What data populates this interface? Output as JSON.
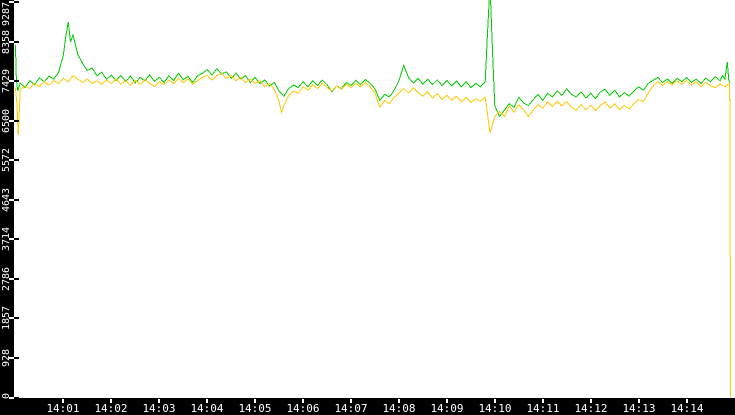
{
  "chart_data": {
    "type": "line",
    "title": "",
    "xlabel": "",
    "ylabel": "",
    "grid": false,
    "legend": "none",
    "plot_background": "#ffffff",
    "outer_background": "#000000",
    "axis_text_color": "#ffffff",
    "x_axis": {
      "labels": [
        "14:01",
        "14:02",
        "14:03",
        "14:04",
        "14:05",
        "14:06",
        "14:07",
        "14:08",
        "14:09",
        "14:10",
        "14:11",
        "14:12",
        "14:13",
        "14:14"
      ],
      "tick_minutes": [
        1,
        2,
        3,
        4,
        5,
        6,
        7,
        8,
        9,
        10,
        11,
        12,
        13,
        14
      ],
      "xlim_minutes": [
        -0.03,
        15.01
      ]
    },
    "y_axis": {
      "tick_values": [
        0,
        928,
        1857,
        2786,
        3714,
        4643,
        5572,
        6500,
        7429,
        8358,
        9287
      ],
      "ylim": [
        0,
        9339
      ]
    },
    "series": [
      {
        "name": "series-green",
        "color": "#00cc00",
        "points": [
          [
            0,
            8280
          ],
          [
            0.02,
            7450
          ],
          [
            0.05,
            7200
          ],
          [
            0.1,
            7390
          ],
          [
            0.2,
            7280
          ],
          [
            0.3,
            7440
          ],
          [
            0.4,
            7350
          ],
          [
            0.5,
            7510
          ],
          [
            0.6,
            7420
          ],
          [
            0.7,
            7550
          ],
          [
            0.8,
            7480
          ],
          [
            0.9,
            7640
          ],
          [
            1.0,
            8050
          ],
          [
            1.05,
            8480
          ],
          [
            1.1,
            8820
          ],
          [
            1.15,
            8350
          ],
          [
            1.2,
            8520
          ],
          [
            1.3,
            8060
          ],
          [
            1.4,
            7850
          ],
          [
            1.5,
            7680
          ],
          [
            1.6,
            7740
          ],
          [
            1.7,
            7560
          ],
          [
            1.8,
            7640
          ],
          [
            1.9,
            7480
          ],
          [
            2.0,
            7570
          ],
          [
            2.1,
            7450
          ],
          [
            2.2,
            7560
          ],
          [
            2.3,
            7430
          ],
          [
            2.4,
            7550
          ],
          [
            2.5,
            7390
          ],
          [
            2.6,
            7520
          ],
          [
            2.7,
            7440
          ],
          [
            2.8,
            7580
          ],
          [
            2.9,
            7430
          ],
          [
            3.0,
            7520
          ],
          [
            3.1,
            7400
          ],
          [
            3.2,
            7560
          ],
          [
            3.3,
            7450
          ],
          [
            3.4,
            7620
          ],
          [
            3.5,
            7470
          ],
          [
            3.6,
            7540
          ],
          [
            3.7,
            7400
          ],
          [
            3.8,
            7560
          ],
          [
            3.9,
            7620
          ],
          [
            4.0,
            7700
          ],
          [
            4.1,
            7580
          ],
          [
            4.2,
            7720
          ],
          [
            4.3,
            7600
          ],
          [
            4.4,
            7650
          ],
          [
            4.5,
            7500
          ],
          [
            4.6,
            7620
          ],
          [
            4.7,
            7480
          ],
          [
            4.8,
            7560
          ],
          [
            4.9,
            7400
          ],
          [
            5.0,
            7520
          ],
          [
            5.1,
            7380
          ],
          [
            5.2,
            7460
          ],
          [
            5.3,
            7320
          ],
          [
            5.4,
            7400
          ],
          [
            5.5,
            7200
          ],
          [
            5.6,
            7080
          ],
          [
            5.7,
            7260
          ],
          [
            5.8,
            7340
          ],
          [
            5.9,
            7280
          ],
          [
            6.0,
            7420
          ],
          [
            6.1,
            7300
          ],
          [
            6.2,
            7440
          ],
          [
            6.3,
            7330
          ],
          [
            6.4,
            7460
          ],
          [
            6.5,
            7350
          ],
          [
            6.6,
            7180
          ],
          [
            6.7,
            7320
          ],
          [
            6.8,
            7260
          ],
          [
            6.9,
            7400
          ],
          [
            7.0,
            7330
          ],
          [
            7.1,
            7450
          ],
          [
            7.2,
            7350
          ],
          [
            7.3,
            7470
          ],
          [
            7.4,
            7380
          ],
          [
            7.5,
            7250
          ],
          [
            7.6,
            6980
          ],
          [
            7.7,
            7120
          ],
          [
            7.8,
            7060
          ],
          [
            7.9,
            7220
          ],
          [
            8.0,
            7440
          ],
          [
            8.1,
            7800
          ],
          [
            8.2,
            7520
          ],
          [
            8.3,
            7390
          ],
          [
            8.4,
            7500
          ],
          [
            8.5,
            7360
          ],
          [
            8.6,
            7480
          ],
          [
            8.7,
            7350
          ],
          [
            8.8,
            7460
          ],
          [
            8.9,
            7330
          ],
          [
            9.0,
            7450
          ],
          [
            9.1,
            7320
          ],
          [
            9.2,
            7440
          ],
          [
            9.3,
            7300
          ],
          [
            9.4,
            7420
          ],
          [
            9.5,
            7280
          ],
          [
            9.6,
            7380
          ],
          [
            9.7,
            7300
          ],
          [
            9.8,
            7420
          ],
          [
            9.85,
            8600
          ],
          [
            9.9,
            9700
          ],
          [
            9.95,
            8200
          ],
          [
            10.0,
            6850
          ],
          [
            10.1,
            6600
          ],
          [
            10.2,
            6750
          ],
          [
            10.3,
            6900
          ],
          [
            10.4,
            6820
          ],
          [
            10.5,
            7050
          ],
          [
            10.6,
            6920
          ],
          [
            10.7,
            6860
          ],
          [
            10.8,
            7000
          ],
          [
            10.9,
            7120
          ],
          [
            11.0,
            6980
          ],
          [
            11.1,
            7150
          ],
          [
            11.2,
            7060
          ],
          [
            11.3,
            7200
          ],
          [
            11.4,
            7100
          ],
          [
            11.5,
            7250
          ],
          [
            11.6,
            7120
          ],
          [
            11.7,
            7060
          ],
          [
            11.8,
            7180
          ],
          [
            11.9,
            7040
          ],
          [
            12.0,
            7150
          ],
          [
            12.1,
            7020
          ],
          [
            12.2,
            7180
          ],
          [
            12.3,
            7240
          ],
          [
            12.4,
            7100
          ],
          [
            12.5,
            7220
          ],
          [
            12.6,
            7060
          ],
          [
            12.7,
            7160
          ],
          [
            12.8,
            7080
          ],
          [
            12.9,
            7200
          ],
          [
            13.0,
            7300
          ],
          [
            13.1,
            7220
          ],
          [
            13.2,
            7380
          ],
          [
            13.3,
            7450
          ],
          [
            13.4,
            7520
          ],
          [
            13.5,
            7400
          ],
          [
            13.6,
            7480
          ],
          [
            13.7,
            7380
          ],
          [
            13.8,
            7500
          ],
          [
            13.9,
            7420
          ],
          [
            14.0,
            7520
          ],
          [
            14.1,
            7400
          ],
          [
            14.2,
            7480
          ],
          [
            14.3,
            7380
          ],
          [
            14.4,
            7500
          ],
          [
            14.5,
            7420
          ],
          [
            14.6,
            7540
          ],
          [
            14.7,
            7440
          ],
          [
            14.75,
            7560
          ],
          [
            14.8,
            7480
          ],
          [
            14.85,
            7880
          ],
          [
            14.88,
            7450
          ],
          [
            14.9,
            7400
          ],
          [
            14.92,
            0
          ]
        ]
      },
      {
        "name": "series-yellow",
        "color": "#ffc800",
        "points": [
          [
            0,
            7280
          ],
          [
            0.03,
            6900
          ],
          [
            0.06,
            6170
          ],
          [
            0.1,
            7230
          ],
          [
            0.2,
            7320
          ],
          [
            0.3,
            7260
          ],
          [
            0.4,
            7380
          ],
          [
            0.5,
            7300
          ],
          [
            0.6,
            7420
          ],
          [
            0.7,
            7340
          ],
          [
            0.8,
            7440
          ],
          [
            0.9,
            7380
          ],
          [
            1.0,
            7500
          ],
          [
            1.1,
            7420
          ],
          [
            1.2,
            7560
          ],
          [
            1.3,
            7480
          ],
          [
            1.4,
            7400
          ],
          [
            1.5,
            7480
          ],
          [
            1.6,
            7380
          ],
          [
            1.7,
            7440
          ],
          [
            1.8,
            7360
          ],
          [
            1.9,
            7460
          ],
          [
            2.0,
            7380
          ],
          [
            2.1,
            7480
          ],
          [
            2.2,
            7360
          ],
          [
            2.3,
            7440
          ],
          [
            2.4,
            7340
          ],
          [
            2.5,
            7450
          ],
          [
            2.6,
            7360
          ],
          [
            2.7,
            7470
          ],
          [
            2.8,
            7380
          ],
          [
            2.9,
            7300
          ],
          [
            3.0,
            7420
          ],
          [
            3.1,
            7350
          ],
          [
            3.2,
            7460
          ],
          [
            3.3,
            7380
          ],
          [
            3.4,
            7500
          ],
          [
            3.5,
            7400
          ],
          [
            3.6,
            7480
          ],
          [
            3.7,
            7360
          ],
          [
            3.8,
            7450
          ],
          [
            3.9,
            7520
          ],
          [
            4.0,
            7580
          ],
          [
            4.1,
            7460
          ],
          [
            4.2,
            7560
          ],
          [
            4.3,
            7620
          ],
          [
            4.4,
            7500
          ],
          [
            4.5,
            7560
          ],
          [
            4.6,
            7440
          ],
          [
            4.7,
            7520
          ],
          [
            4.8,
            7400
          ],
          [
            4.9,
            7480
          ],
          [
            5.0,
            7380
          ],
          [
            5.1,
            7440
          ],
          [
            5.2,
            7300
          ],
          [
            5.3,
            7380
          ],
          [
            5.4,
            7240
          ],
          [
            5.5,
            6950
          ],
          [
            5.55,
            6700
          ],
          [
            5.6,
            6850
          ],
          [
            5.7,
            7100
          ],
          [
            5.8,
            7200
          ],
          [
            5.9,
            7150
          ],
          [
            6.0,
            7300
          ],
          [
            6.1,
            7220
          ],
          [
            6.2,
            7350
          ],
          [
            6.3,
            7260
          ],
          [
            6.4,
            7380
          ],
          [
            6.5,
            7280
          ],
          [
            6.6,
            7200
          ],
          [
            6.7,
            7320
          ],
          [
            6.8,
            7240
          ],
          [
            6.9,
            7360
          ],
          [
            7.0,
            7280
          ],
          [
            7.1,
            7380
          ],
          [
            7.2,
            7300
          ],
          [
            7.3,
            7400
          ],
          [
            7.4,
            7300
          ],
          [
            7.5,
            7150
          ],
          [
            7.6,
            6820
          ],
          [
            7.7,
            6980
          ],
          [
            7.8,
            6900
          ],
          [
            7.9,
            7050
          ],
          [
            8.0,
            7150
          ],
          [
            8.1,
            7260
          ],
          [
            8.2,
            7150
          ],
          [
            8.3,
            7280
          ],
          [
            8.4,
            7160
          ],
          [
            8.5,
            7080
          ],
          [
            8.6,
            7180
          ],
          [
            8.7,
            7040
          ],
          [
            8.8,
            7140
          ],
          [
            8.9,
            7000
          ],
          [
            9.0,
            7100
          ],
          [
            9.1,
            6980
          ],
          [
            9.2,
            7080
          ],
          [
            9.3,
            6950
          ],
          [
            9.4,
            7050
          ],
          [
            9.5,
            6930
          ],
          [
            9.6,
            7020
          ],
          [
            9.7,
            6960
          ],
          [
            9.8,
            7060
          ],
          [
            9.9,
            6220
          ],
          [
            10.0,
            6600
          ],
          [
            10.1,
            6720
          ],
          [
            10.2,
            6600
          ],
          [
            10.3,
            6850
          ],
          [
            10.4,
            6700
          ],
          [
            10.5,
            6880
          ],
          [
            10.6,
            6760
          ],
          [
            10.7,
            6600
          ],
          [
            10.8,
            6750
          ],
          [
            10.9,
            6880
          ],
          [
            11.0,
            6800
          ],
          [
            11.1,
            6950
          ],
          [
            11.2,
            6840
          ],
          [
            11.3,
            6960
          ],
          [
            11.4,
            6850
          ],
          [
            11.5,
            6950
          ],
          [
            11.6,
            6820
          ],
          [
            11.7,
            6750
          ],
          [
            11.8,
            6880
          ],
          [
            11.9,
            6760
          ],
          [
            12.0,
            6870
          ],
          [
            12.1,
            6740
          ],
          [
            12.2,
            6860
          ],
          [
            12.3,
            6940
          ],
          [
            12.4,
            6800
          ],
          [
            12.5,
            6900
          ],
          [
            12.6,
            6760
          ],
          [
            12.7,
            6860
          ],
          [
            12.8,
            6780
          ],
          [
            12.9,
            6900
          ],
          [
            13.0,
            7000
          ],
          [
            13.1,
            6950
          ],
          [
            13.2,
            7150
          ],
          [
            13.3,
            7320
          ],
          [
            13.4,
            7420
          ],
          [
            13.5,
            7330
          ],
          [
            13.6,
            7420
          ],
          [
            13.7,
            7350
          ],
          [
            13.8,
            7440
          ],
          [
            13.9,
            7360
          ],
          [
            14.0,
            7450
          ],
          [
            14.1,
            7340
          ],
          [
            14.2,
            7420
          ],
          [
            14.3,
            7300
          ],
          [
            14.4,
            7400
          ],
          [
            14.5,
            7320
          ],
          [
            14.6,
            7280
          ],
          [
            14.7,
            7360
          ],
          [
            14.8,
            7300
          ],
          [
            14.9,
            7380
          ],
          [
            14.92,
            0
          ]
        ]
      }
    ]
  }
}
